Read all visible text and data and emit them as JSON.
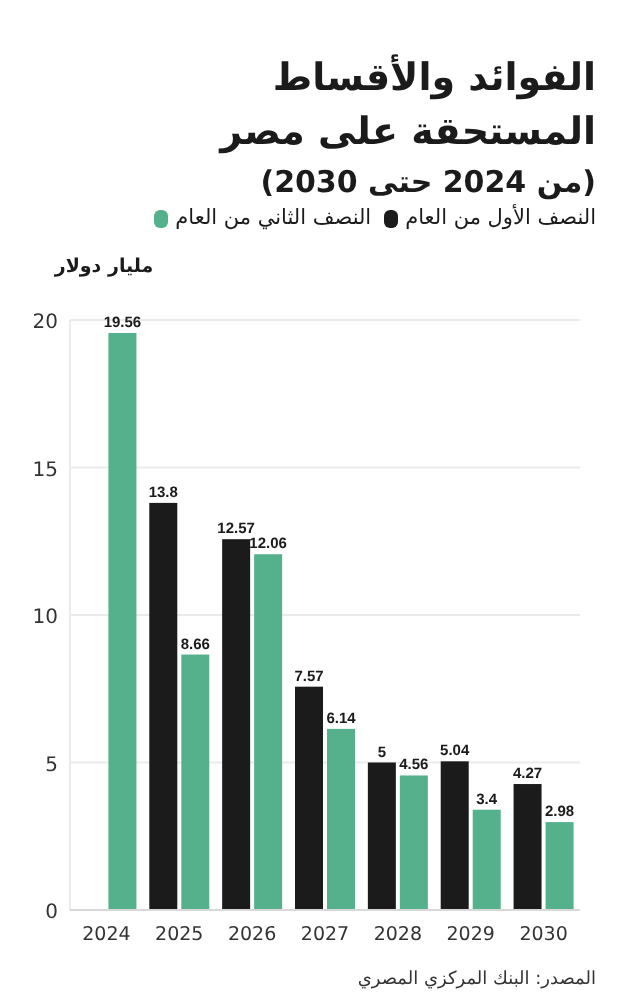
{
  "chart_data": {
    "type": "bar",
    "title": "الفوائد والأقساط المستحقة على مصر",
    "subtitle": "(من 2024 حتى 2030)",
    "ylabel": "مليار دولار",
    "categories": [
      "2024",
      "2025",
      "2026",
      "2027",
      "2028",
      "2029",
      "2030"
    ],
    "series": [
      {
        "name": "النصف الأول من العام",
        "color": "#1b1b1b",
        "values": [
          null,
          13.8,
          12.57,
          7.57,
          5,
          5.04,
          4.27
        ]
      },
      {
        "name": "النصف الثاني من العام",
        "color": "#55b08c",
        "values": [
          19.56,
          8.66,
          12.06,
          6.14,
          4.56,
          3.4,
          2.98
        ]
      }
    ],
    "ylim": [
      0,
      20
    ],
    "yticks": [
      0,
      5,
      10,
      15,
      20
    ],
    "grid": "y",
    "legend": "top",
    "data_labels": true,
    "annotations": [
      "المصدر: البنك المركزي المصري"
    ]
  }
}
